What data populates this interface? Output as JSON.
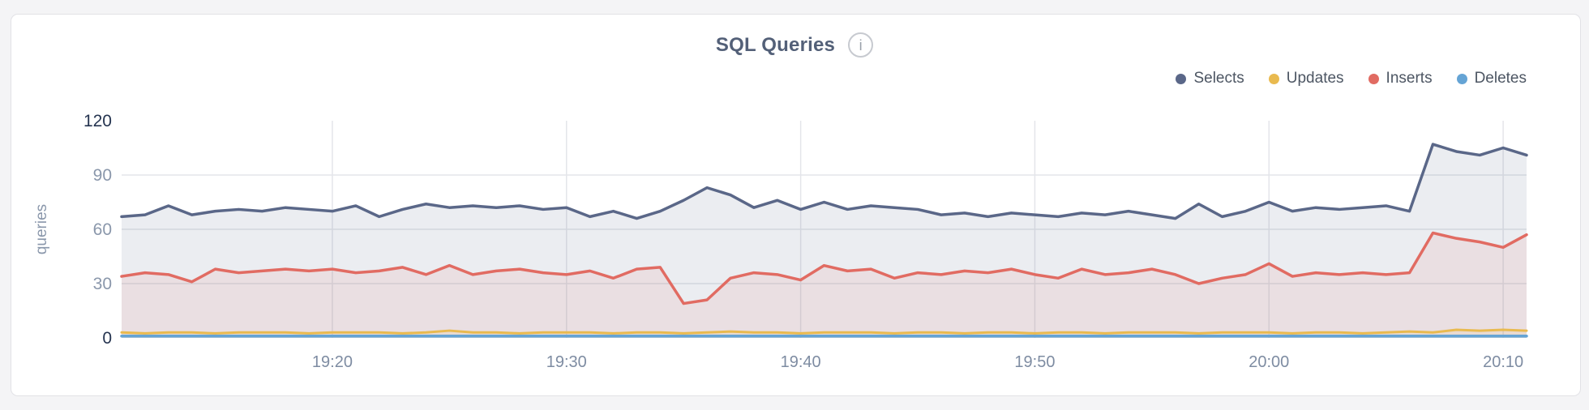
{
  "header": {
    "title": "SQL Queries",
    "info_icon": "i"
  },
  "colors": {
    "page_bg": "#f4f4f6",
    "card_border": "#e2e2e6",
    "title": "#536078",
    "grid": "#e4e5ea",
    "tick_default": "#8a97ab",
    "tick_emphasis": "#253450",
    "x_tick": "#7e8ca2",
    "legend_text": "#4d5663"
  },
  "chart_data": {
    "type": "area",
    "title": "SQL Queries",
    "xlabel": "",
    "ylabel": "queries",
    "ylim": [
      0,
      120
    ],
    "grid": true,
    "legend_position": "top-right",
    "x_start_time": "19:11",
    "x_end_time": "20:11",
    "x_step_minutes": 1,
    "yticks": [
      {
        "label": "0",
        "value": 0,
        "emphasis": true
      },
      {
        "label": "30",
        "value": 30,
        "emphasis": false
      },
      {
        "label": "60",
        "value": 60,
        "emphasis": false
      },
      {
        "label": "90",
        "value": 90,
        "emphasis": false
      },
      {
        "label": "120",
        "value": 120,
        "emphasis": true
      }
    ],
    "xticks": [
      {
        "label": "19:20",
        "minute_index": 9
      },
      {
        "label": "19:30",
        "minute_index": 19
      },
      {
        "label": "19:40",
        "minute_index": 29
      },
      {
        "label": "19:50",
        "minute_index": 39
      },
      {
        "label": "20:00",
        "minute_index": 49
      },
      {
        "label": "20:10",
        "minute_index": 59
      }
    ],
    "series": [
      {
        "name": "Selects",
        "color": "#5a6788",
        "fill_opacity": 0.12,
        "line_width": 3.5,
        "values": [
          67,
          68,
          73,
          68,
          70,
          71,
          70,
          72,
          71,
          70,
          73,
          67,
          71,
          74,
          72,
          73,
          72,
          73,
          71,
          72,
          67,
          70,
          66,
          70,
          76,
          83,
          79,
          72,
          76,
          71,
          75,
          71,
          73,
          72,
          71,
          68,
          69,
          67,
          69,
          68,
          67,
          69,
          68,
          70,
          68,
          66,
          74,
          67,
          70,
          75,
          70,
          72,
          71,
          72,
          73,
          70,
          107,
          103,
          101,
          105,
          101
        ]
      },
      {
        "name": "Updates",
        "color": "#e9ba4f",
        "fill_opacity": 0.12,
        "line_width": 3,
        "values": [
          3,
          2.5,
          3,
          3,
          2.5,
          3,
          3,
          3,
          2.5,
          3,
          3,
          3,
          2.5,
          3,
          4,
          3,
          3,
          2.5,
          3,
          3,
          3,
          2.5,
          3,
          3,
          2.5,
          3,
          3.5,
          3,
          3,
          2.5,
          3,
          3,
          3,
          2.5,
          3,
          3,
          2.5,
          3,
          3,
          2.5,
          3,
          3,
          2.5,
          3,
          3,
          3,
          2.5,
          3,
          3,
          3,
          2.5,
          3,
          3,
          2.5,
          3,
          3.5,
          3,
          4.5,
          4,
          4.5,
          4
        ]
      },
      {
        "name": "Inserts",
        "color": "#e16b62",
        "fill_opacity": 0.1,
        "line_width": 3.5,
        "values": [
          34,
          36,
          35,
          31,
          38,
          36,
          37,
          38,
          37,
          38,
          36,
          37,
          39,
          35,
          40,
          35,
          37,
          38,
          36,
          35,
          37,
          33,
          38,
          39,
          19,
          21,
          33,
          36,
          35,
          32,
          40,
          37,
          38,
          33,
          36,
          35,
          37,
          36,
          38,
          35,
          33,
          38,
          35,
          36,
          38,
          35,
          30,
          33,
          35,
          41,
          34,
          36,
          35,
          36,
          35,
          36,
          58,
          55,
          53,
          50,
          57
        ]
      },
      {
        "name": "Deletes",
        "color": "#65a4d5",
        "fill_opacity": 0.2,
        "line_width": 3.5,
        "values": [
          1,
          1,
          1,
          1,
          1,
          1,
          1,
          1,
          1,
          1,
          1,
          1,
          1,
          1,
          1,
          1,
          1,
          1,
          1,
          1,
          1,
          1,
          1,
          1,
          1,
          1,
          1,
          1,
          1,
          1,
          1,
          1,
          1,
          1,
          1,
          1,
          1,
          1,
          1,
          1,
          1,
          1,
          1,
          1,
          1,
          1,
          1,
          1,
          1,
          1,
          1,
          1,
          1,
          1,
          1,
          1,
          1,
          1,
          1,
          1,
          1
        ]
      }
    ]
  }
}
